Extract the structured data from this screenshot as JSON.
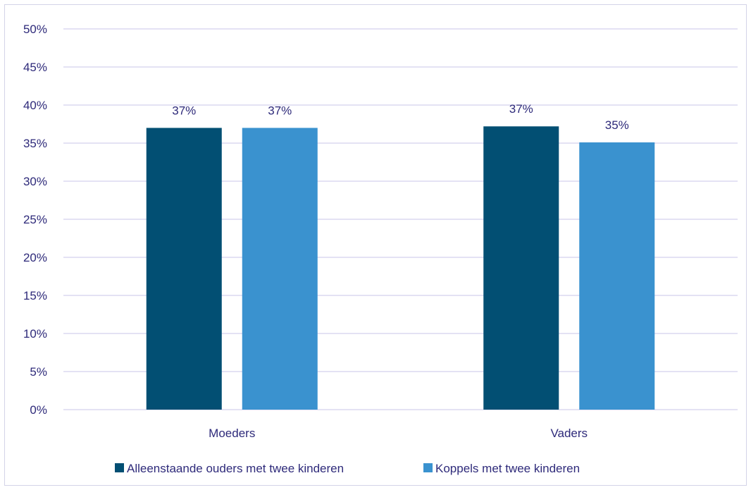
{
  "chart_data": {
    "type": "bar",
    "categories": [
      "Moeders",
      "Vaders"
    ],
    "series": [
      {
        "name": "Alleenstaande ouders met twee kinderen",
        "values": [
          37,
          37.2
        ],
        "labels": [
          "37%",
          "37%"
        ],
        "color": "#024f73"
      },
      {
        "name": "Koppels met twee kinderen",
        "values": [
          37,
          35.1
        ],
        "labels": [
          "37%",
          "35%"
        ],
        "color": "#3a92cf"
      }
    ],
    "ylim": [
      0,
      50
    ],
    "yticks": [
      "0%",
      "5%",
      "10%",
      "15%",
      "20%",
      "25%",
      "30%",
      "35%",
      "40%",
      "45%",
      "50%"
    ],
    "ytick_values": [
      0,
      5,
      10,
      15,
      20,
      25,
      30,
      35,
      40,
      45,
      50
    ],
    "grid": true,
    "gridline_color": "#c9c6ea",
    "text_color": "#2e2a7a",
    "legend_position": "bottom",
    "title": "",
    "xlabel": "",
    "ylabel": ""
  }
}
